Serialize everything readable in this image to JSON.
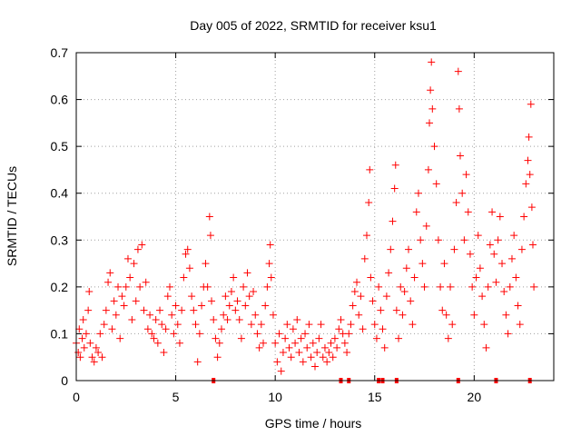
{
  "chart_data": {
    "type": "scatter",
    "title": "Day 005 of 2022, SRMTID for receiver ksu1",
    "xlabel": "GPS time / hours",
    "ylabel": "SRMTID / TECUs",
    "xlim": [
      0,
      24
    ],
    "ylim": [
      0,
      0.7
    ],
    "xticks": [
      0,
      5,
      10,
      15,
      20
    ],
    "yticks": [
      0,
      0.1,
      0.2,
      0.3,
      0.4,
      0.5,
      0.6,
      0.7
    ],
    "grid": true,
    "marker": "plus",
    "color": "#ff0000",
    "baseline_flags_hours": [
      6.9,
      13.3,
      13.7,
      15.2,
      15.4,
      16.1,
      19.2,
      21.1,
      22.8
    ],
    "series": [
      {
        "name": "ksu1",
        "points": [
          [
            0.0,
            0.08
          ],
          [
            0.1,
            0.06
          ],
          [
            0.15,
            0.11
          ],
          [
            0.2,
            0.05
          ],
          [
            0.3,
            0.09
          ],
          [
            0.35,
            0.13
          ],
          [
            0.4,
            0.07
          ],
          [
            0.5,
            0.1
          ],
          [
            0.6,
            0.15
          ],
          [
            0.65,
            0.19
          ],
          [
            0.7,
            0.08
          ],
          [
            0.8,
            0.05
          ],
          [
            0.9,
            0.04
          ],
          [
            1.0,
            0.07
          ],
          [
            1.1,
            0.06
          ],
          [
            1.2,
            0.1
          ],
          [
            1.3,
            0.05
          ],
          [
            1.4,
            0.12
          ],
          [
            1.5,
            0.15
          ],
          [
            1.6,
            0.21
          ],
          [
            1.7,
            0.23
          ],
          [
            1.8,
            0.11
          ],
          [
            1.9,
            0.17
          ],
          [
            2.0,
            0.14
          ],
          [
            2.1,
            0.2
          ],
          [
            2.2,
            0.09
          ],
          [
            2.3,
            0.18
          ],
          [
            2.4,
            0.16
          ],
          [
            2.5,
            0.2
          ],
          [
            2.6,
            0.26
          ],
          [
            2.7,
            0.22
          ],
          [
            2.8,
            0.13
          ],
          [
            2.9,
            0.25
          ],
          [
            3.0,
            0.17
          ],
          [
            3.1,
            0.28
          ],
          [
            3.2,
            0.2
          ],
          [
            3.3,
            0.29
          ],
          [
            3.4,
            0.15
          ],
          [
            3.5,
            0.21
          ],
          [
            3.6,
            0.11
          ],
          [
            3.7,
            0.14
          ],
          [
            3.8,
            0.1
          ],
          [
            3.9,
            0.09
          ],
          [
            4.0,
            0.13
          ],
          [
            4.1,
            0.08
          ],
          [
            4.2,
            0.15
          ],
          [
            4.3,
            0.12
          ],
          [
            4.4,
            0.06
          ],
          [
            4.5,
            0.11
          ],
          [
            4.6,
            0.18
          ],
          [
            4.7,
            0.2
          ],
          [
            4.8,
            0.14
          ],
          [
            4.9,
            0.1
          ],
          [
            5.0,
            0.16
          ],
          [
            5.1,
            0.12
          ],
          [
            5.2,
            0.08
          ],
          [
            5.3,
            0.15
          ],
          [
            5.4,
            0.22
          ],
          [
            5.5,
            0.27
          ],
          [
            5.6,
            0.28
          ],
          [
            5.7,
            0.24
          ],
          [
            5.8,
            0.18
          ],
          [
            5.9,
            0.15
          ],
          [
            6.0,
            0.12
          ],
          [
            6.1,
            0.04
          ],
          [
            6.2,
            0.1
          ],
          [
            6.3,
            0.16
          ],
          [
            6.4,
            0.2
          ],
          [
            6.5,
            0.25
          ],
          [
            6.6,
            0.2
          ],
          [
            6.7,
            0.35
          ],
          [
            6.75,
            0.31
          ],
          [
            6.8,
            0.17
          ],
          [
            6.9,
            0.13
          ],
          [
            7.0,
            0.09
          ],
          [
            7.1,
            0.05
          ],
          [
            7.2,
            0.08
          ],
          [
            7.3,
            0.11
          ],
          [
            7.4,
            0.14
          ],
          [
            7.5,
            0.18
          ],
          [
            7.6,
            0.13
          ],
          [
            7.7,
            0.16
          ],
          [
            7.8,
            0.19
          ],
          [
            7.9,
            0.22
          ],
          [
            8.0,
            0.15
          ],
          [
            8.1,
            0.17
          ],
          [
            8.2,
            0.13
          ],
          [
            8.3,
            0.09
          ],
          [
            8.4,
            0.2
          ],
          [
            8.5,
            0.16
          ],
          [
            8.6,
            0.23
          ],
          [
            8.7,
            0.18
          ],
          [
            8.8,
            0.12
          ],
          [
            8.9,
            0.19
          ],
          [
            9.0,
            0.14
          ],
          [
            9.1,
            0.1
          ],
          [
            9.2,
            0.07
          ],
          [
            9.3,
            0.12
          ],
          [
            9.4,
            0.08
          ],
          [
            9.5,
            0.16
          ],
          [
            9.6,
            0.2
          ],
          [
            9.7,
            0.25
          ],
          [
            9.75,
            0.29
          ],
          [
            9.8,
            0.22
          ],
          [
            9.9,
            0.14
          ],
          [
            10.0,
            0.08
          ],
          [
            10.1,
            0.04
          ],
          [
            10.2,
            0.1
          ],
          [
            10.3,
            0.02
          ],
          [
            10.4,
            0.06
          ],
          [
            10.5,
            0.09
          ],
          [
            10.6,
            0.12
          ],
          [
            10.7,
            0.07
          ],
          [
            10.8,
            0.05
          ],
          [
            10.9,
            0.11
          ],
          [
            11.0,
            0.08
          ],
          [
            11.1,
            0.13
          ],
          [
            11.2,
            0.06
          ],
          [
            11.3,
            0.09
          ],
          [
            11.4,
            0.04
          ],
          [
            11.5,
            0.1
          ],
          [
            11.6,
            0.07
          ],
          [
            11.7,
            0.12
          ],
          [
            11.8,
            0.05
          ],
          [
            11.9,
            0.08
          ],
          [
            12.0,
            0.03
          ],
          [
            12.1,
            0.06
          ],
          [
            12.2,
            0.09
          ],
          [
            12.3,
            0.12
          ],
          [
            12.4,
            0.05
          ],
          [
            12.5,
            0.07
          ],
          [
            12.6,
            0.04
          ],
          [
            12.7,
            0.06
          ],
          [
            12.8,
            0.08
          ],
          [
            12.9,
            0.05
          ],
          [
            13.0,
            0.09
          ],
          [
            13.1,
            0.07
          ],
          [
            13.2,
            0.11
          ],
          [
            13.3,
            0.13
          ],
          [
            13.4,
            0.1
          ],
          [
            13.5,
            0.08
          ],
          [
            13.6,
            0.06
          ],
          [
            13.7,
            0.1
          ],
          [
            13.8,
            0.12
          ],
          [
            13.9,
            0.16
          ],
          [
            14.0,
            0.19
          ],
          [
            14.1,
            0.21
          ],
          [
            14.2,
            0.14
          ],
          [
            14.3,
            0.18
          ],
          [
            14.4,
            0.11
          ],
          [
            14.5,
            0.26
          ],
          [
            14.6,
            0.31
          ],
          [
            14.7,
            0.38
          ],
          [
            14.75,
            0.45
          ],
          [
            14.8,
            0.22
          ],
          [
            14.9,
            0.17
          ],
          [
            15.0,
            0.12
          ],
          [
            15.1,
            0.09
          ],
          [
            15.2,
            0.2
          ],
          [
            15.3,
            0.15
          ],
          [
            15.4,
            0.11
          ],
          [
            15.5,
            0.07
          ],
          [
            15.6,
            0.18
          ],
          [
            15.7,
            0.23
          ],
          [
            15.8,
            0.28
          ],
          [
            15.9,
            0.34
          ],
          [
            16.0,
            0.41
          ],
          [
            16.05,
            0.46
          ],
          [
            16.1,
            0.15
          ],
          [
            16.2,
            0.09
          ],
          [
            16.3,
            0.2
          ],
          [
            16.4,
            0.14
          ],
          [
            16.5,
            0.19
          ],
          [
            16.6,
            0.24
          ],
          [
            16.7,
            0.28
          ],
          [
            16.8,
            0.17
          ],
          [
            16.9,
            0.12
          ],
          [
            17.0,
            0.22
          ],
          [
            17.1,
            0.36
          ],
          [
            17.2,
            0.4
          ],
          [
            17.3,
            0.3
          ],
          [
            17.4,
            0.25
          ],
          [
            17.5,
            0.2
          ],
          [
            17.6,
            0.33
          ],
          [
            17.7,
            0.45
          ],
          [
            17.75,
            0.55
          ],
          [
            17.8,
            0.62
          ],
          [
            17.85,
            0.68
          ],
          [
            17.9,
            0.58
          ],
          [
            18.0,
            0.5
          ],
          [
            18.1,
            0.42
          ],
          [
            18.2,
            0.3
          ],
          [
            18.3,
            0.2
          ],
          [
            18.4,
            0.15
          ],
          [
            18.5,
            0.25
          ],
          [
            18.6,
            0.14
          ],
          [
            18.7,
            0.09
          ],
          [
            18.8,
            0.2
          ],
          [
            18.9,
            0.12
          ],
          [
            19.0,
            0.28
          ],
          [
            19.1,
            0.38
          ],
          [
            19.2,
            0.66
          ],
          [
            19.25,
            0.58
          ],
          [
            19.3,
            0.48
          ],
          [
            19.4,
            0.4
          ],
          [
            19.5,
            0.3
          ],
          [
            19.6,
            0.44
          ],
          [
            19.7,
            0.36
          ],
          [
            19.8,
            0.27
          ],
          [
            19.9,
            0.2
          ],
          [
            20.0,
            0.14
          ],
          [
            20.1,
            0.22
          ],
          [
            20.2,
            0.31
          ],
          [
            20.3,
            0.24
          ],
          [
            20.4,
            0.18
          ],
          [
            20.5,
            0.12
          ],
          [
            20.6,
            0.07
          ],
          [
            20.7,
            0.2
          ],
          [
            20.8,
            0.29
          ],
          [
            20.9,
            0.36
          ],
          [
            21.0,
            0.27
          ],
          [
            21.1,
            0.21
          ],
          [
            21.2,
            0.3
          ],
          [
            21.3,
            0.35
          ],
          [
            21.4,
            0.25
          ],
          [
            21.5,
            0.19
          ],
          [
            21.6,
            0.14
          ],
          [
            21.7,
            0.1
          ],
          [
            21.8,
            0.2
          ],
          [
            21.9,
            0.26
          ],
          [
            22.0,
            0.31
          ],
          [
            22.1,
            0.22
          ],
          [
            22.2,
            0.16
          ],
          [
            22.3,
            0.12
          ],
          [
            22.4,
            0.28
          ],
          [
            22.5,
            0.35
          ],
          [
            22.6,
            0.42
          ],
          [
            22.7,
            0.47
          ],
          [
            22.75,
            0.52
          ],
          [
            22.8,
            0.44
          ],
          [
            22.85,
            0.59
          ],
          [
            22.9,
            0.37
          ],
          [
            22.95,
            0.29
          ],
          [
            23.0,
            0.2
          ]
        ]
      }
    ]
  }
}
